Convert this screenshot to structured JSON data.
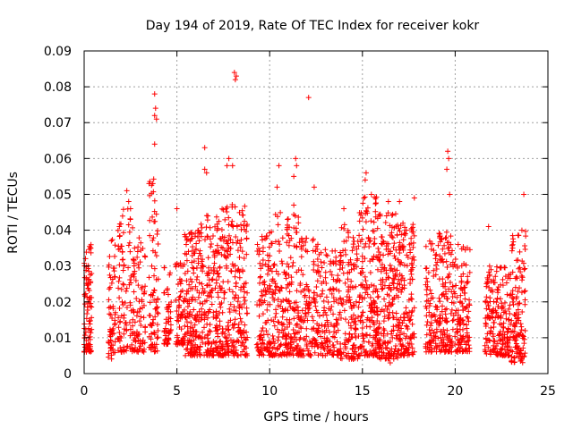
{
  "chart_data": {
    "type": "scatter",
    "title": "Day 194 of 2019, Rate Of TEC Index for receiver kokr",
    "xlabel": "GPS time / hours",
    "ylabel": "ROTI / TECUs",
    "xlim": [
      0,
      25
    ],
    "ylim": [
      0,
      0.09
    ],
    "xticks": [
      0,
      5,
      10,
      15,
      20,
      25
    ],
    "xtick_labels": [
      "0",
      "5",
      "10",
      "15",
      "20",
      "25"
    ],
    "yticks": [
      0,
      0.01,
      0.02,
      0.03,
      0.04,
      0.05,
      0.06,
      0.07,
      0.08,
      0.09
    ],
    "ytick_labels": [
      "0",
      "0.01",
      "0.02",
      "0.03",
      "0.04",
      "0.05",
      "0.06",
      "0.07",
      "0.08",
      "0.09"
    ],
    "grid": true,
    "marker": "+",
    "marker_color": "#ff0000",
    "clusters": [
      {
        "x": [
          0.0,
          0.4
        ],
        "ymin": 0.006,
        "ymax": 0.036,
        "n": 90
      },
      {
        "x": [
          1.3,
          1.7
        ],
        "ymin": 0.004,
        "ymax": 0.038,
        "n": 60
      },
      {
        "x": [
          1.8,
          2.7
        ],
        "ymin": 0.006,
        "ymax": 0.047,
        "n": 110
      },
      {
        "x": [
          2.7,
          3.3
        ],
        "ymin": 0.006,
        "ymax": 0.04,
        "n": 70
      },
      {
        "x": [
          3.5,
          4.0
        ],
        "ymin": 0.006,
        "ymax": 0.055,
        "n": 80
      },
      {
        "x": [
          4.3,
          4.7
        ],
        "ymin": 0.008,
        "ymax": 0.03,
        "n": 50
      },
      {
        "x": [
          4.9,
          5.4
        ],
        "ymin": 0.008,
        "ymax": 0.033,
        "n": 60
      },
      {
        "x": [
          5.4,
          6.3
        ],
        "ymin": 0.005,
        "ymax": 0.04,
        "n": 170
      },
      {
        "x": [
          6.3,
          7.4
        ],
        "ymin": 0.005,
        "ymax": 0.045,
        "n": 180
      },
      {
        "x": [
          7.4,
          8.8
        ],
        "ymin": 0.005,
        "ymax": 0.048,
        "n": 230
      },
      {
        "x": [
          9.3,
          10.3
        ],
        "ymin": 0.005,
        "ymax": 0.04,
        "n": 150
      },
      {
        "x": [
          10.3,
          11.6
        ],
        "ymin": 0.005,
        "ymax": 0.045,
        "n": 190
      },
      {
        "x": [
          11.6,
          12.6
        ],
        "ymin": 0.005,
        "ymax": 0.038,
        "n": 130
      },
      {
        "x": [
          12.6,
          13.8
        ],
        "ymin": 0.005,
        "ymax": 0.035,
        "n": 140
      },
      {
        "x": [
          13.8,
          14.8
        ],
        "ymin": 0.004,
        "ymax": 0.042,
        "n": 140
      },
      {
        "x": [
          14.8,
          15.8
        ],
        "ymin": 0.005,
        "ymax": 0.05,
        "n": 180
      },
      {
        "x": [
          15.8,
          16.9
        ],
        "ymin": 0.004,
        "ymax": 0.045,
        "n": 210
      },
      {
        "x": [
          16.9,
          17.8
        ],
        "ymin": 0.005,
        "ymax": 0.042,
        "n": 160
      },
      {
        "x": [
          18.4,
          19.1
        ],
        "ymin": 0.006,
        "ymax": 0.037,
        "n": 90
      },
      {
        "x": [
          19.1,
          20.0
        ],
        "ymin": 0.006,
        "ymax": 0.04,
        "n": 140
      },
      {
        "x": [
          20.0,
          20.8
        ],
        "ymin": 0.006,
        "ymax": 0.038,
        "n": 120
      },
      {
        "x": [
          21.6,
          22.3
        ],
        "ymin": 0.005,
        "ymax": 0.03,
        "n": 100
      },
      {
        "x": [
          22.3,
          23.0
        ],
        "ymin": 0.005,
        "ymax": 0.03,
        "n": 100
      },
      {
        "x": [
          23.0,
          23.8
        ],
        "ymin": 0.003,
        "ymax": 0.04,
        "n": 130
      }
    ],
    "outliers": [
      {
        "x": 3.8,
        "y": 0.078
      },
      {
        "x": 3.85,
        "y": 0.074
      },
      {
        "x": 3.8,
        "y": 0.072
      },
      {
        "x": 3.9,
        "y": 0.071
      },
      {
        "x": 3.8,
        "y": 0.064
      },
      {
        "x": 3.7,
        "y": 0.053
      },
      {
        "x": 3.5,
        "y": 0.053
      },
      {
        "x": 8.1,
        "y": 0.084
      },
      {
        "x": 8.15,
        "y": 0.082
      },
      {
        "x": 8.2,
        "y": 0.083
      },
      {
        "x": 6.5,
        "y": 0.063
      },
      {
        "x": 7.8,
        "y": 0.06
      },
      {
        "x": 6.6,
        "y": 0.056
      },
      {
        "x": 6.5,
        "y": 0.057
      },
      {
        "x": 7.7,
        "y": 0.058
      },
      {
        "x": 8.0,
        "y": 0.058
      },
      {
        "x": 12.1,
        "y": 0.077
      },
      {
        "x": 11.4,
        "y": 0.06
      },
      {
        "x": 11.45,
        "y": 0.058
      },
      {
        "x": 11.3,
        "y": 0.055
      },
      {
        "x": 10.5,
        "y": 0.058
      },
      {
        "x": 10.4,
        "y": 0.052
      },
      {
        "x": 12.4,
        "y": 0.052
      },
      {
        "x": 11.3,
        "y": 0.047
      },
      {
        "x": 19.6,
        "y": 0.062
      },
      {
        "x": 19.65,
        "y": 0.06
      },
      {
        "x": 19.55,
        "y": 0.057
      },
      {
        "x": 19.7,
        "y": 0.05
      },
      {
        "x": 15.2,
        "y": 0.056
      },
      {
        "x": 15.15,
        "y": 0.054
      },
      {
        "x": 2.3,
        "y": 0.051
      },
      {
        "x": 2.4,
        "y": 0.048
      },
      {
        "x": 2.5,
        "y": 0.046
      },
      {
        "x": 5.0,
        "y": 0.046
      },
      {
        "x": 17.8,
        "y": 0.049
      },
      {
        "x": 23.7,
        "y": 0.05
      },
      {
        "x": 16.4,
        "y": 0.048
      },
      {
        "x": 17.0,
        "y": 0.048
      },
      {
        "x": 14.0,
        "y": 0.046
      },
      {
        "x": 1.9,
        "y": 0.041
      },
      {
        "x": 21.8,
        "y": 0.041
      },
      {
        "x": 16.5,
        "y": 0.003
      }
    ]
  }
}
